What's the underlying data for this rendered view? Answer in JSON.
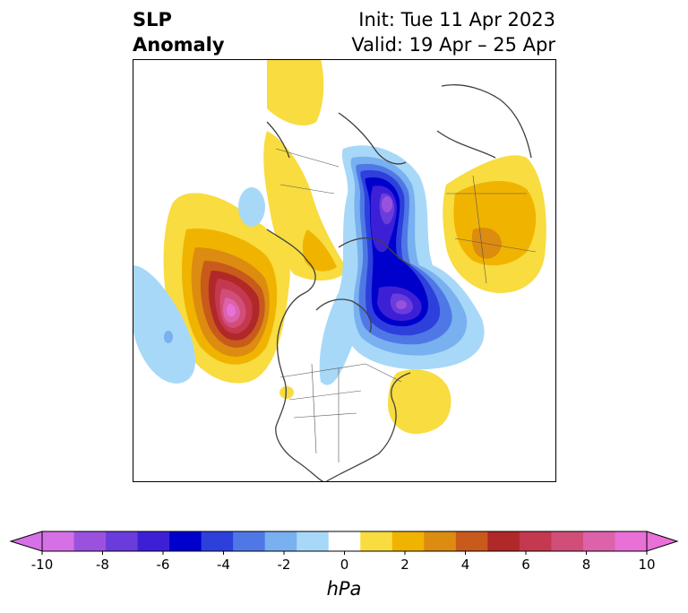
{
  "title": {
    "left_line1": "SLP",
    "left_line2": "Anomaly",
    "right_line1": "Init: Tue 11 Apr 2023",
    "right_line2": "Valid: 19 Apr – 25 Apr"
  },
  "colorbar": {
    "unit": "hPa",
    "ticks": [
      "-10",
      "-8",
      "-6",
      "-4",
      "-2",
      "0",
      "2",
      "4",
      "6",
      "8",
      "10"
    ],
    "extend_low_color": "#d670e6",
    "extend_high_color": "#e870d6",
    "colors": [
      "#d670e6",
      "#9a52de",
      "#6a3cdc",
      "#3d20d6",
      "#0000cd",
      "#2d40dc",
      "#4f78e6",
      "#78b0f0",
      "#a8d8f8",
      "#ffffff",
      "#f8dc40",
      "#f0b400",
      "#dc8c10",
      "#c85a1c",
      "#b02828",
      "#c43850",
      "#d04e78",
      "#dc62aa",
      "#e870d6"
    ]
  },
  "map": {
    "projection": "north-polar-stereographic",
    "legend_labels": []
  }
}
